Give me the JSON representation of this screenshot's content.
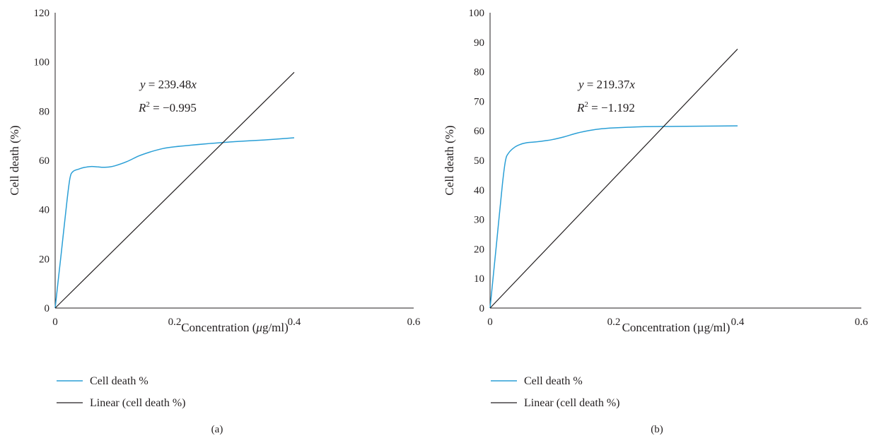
{
  "chart_data": [
    {
      "type": "line",
      "panel_label": "(a)",
      "xlabel_prefix": "Concentration (",
      "xlabel_mu": "μ",
      "xlabel_suffix": "g/ml)",
      "ylabel": "Cell death (%)",
      "xlim": [
        0,
        0.6
      ],
      "ylim": [
        0,
        120
      ],
      "xticks": [
        0,
        0.2,
        0.4,
        0.6
      ],
      "xtick_labels": [
        "0",
        "0.2",
        "0.4",
        "0.6"
      ],
      "yticks": [
        0,
        20,
        40,
        60,
        80,
        100,
        120
      ],
      "ytick_labels": [
        "0",
        "20",
        "40",
        "60",
        "80",
        "100",
        "120"
      ],
      "grid": false,
      "legend_position": "bottom-left",
      "equation": {
        "y_var": "y",
        "y_rest": " = 239.48",
        "y_x": "x",
        "r_var": "R",
        "r_sup": "2",
        "r_rest": " = −0.995"
      },
      "series": [
        {
          "name": "Cell death %",
          "color": "#2a9fd6",
          "x": [
            0,
            0.01,
            0.02,
            0.025,
            0.03,
            0.04,
            0.05,
            0.06,
            0.07,
            0.08,
            0.09,
            0.1,
            0.12,
            0.14,
            0.16,
            0.18,
            0.2,
            0.25,
            0.3,
            0.35,
            0.4
          ],
          "y": [
            0,
            22,
            44,
            53,
            55.5,
            56.5,
            57.2,
            57.5,
            57.4,
            57.2,
            57.3,
            57.8,
            59.5,
            61.8,
            63.5,
            64.8,
            65.5,
            66.7,
            67.6,
            68.3,
            69.2
          ]
        },
        {
          "name": "Linear (cell death %)",
          "color": "#231f20",
          "x": [
            0,
            0.4
          ],
          "y": [
            0,
            95.8
          ]
        }
      ]
    },
    {
      "type": "line",
      "panel_label": "(b)",
      "xlabel_prefix": "Concentration (",
      "xlabel_mu": "µ",
      "xlabel_suffix": "g/ml)",
      "ylabel": "Cell death (%)",
      "xlim": [
        0,
        0.6
      ],
      "ylim": [
        0,
        100
      ],
      "xticks": [
        0,
        0.2,
        0.4,
        0.6
      ],
      "xtick_labels": [
        "0",
        "0.2",
        "0.4",
        "0.6"
      ],
      "yticks": [
        0,
        10,
        20,
        30,
        40,
        50,
        60,
        70,
        80,
        90,
        100
      ],
      "ytick_labels": [
        "0",
        "10",
        "20",
        "30",
        "40",
        "50",
        "60",
        "70",
        "80",
        "90",
        "100"
      ],
      "grid": false,
      "legend_position": "bottom-left",
      "equation": {
        "y_var": "y",
        "y_rest": " = 219.37",
        "y_x": "x",
        "r_var": "R",
        "r_sup": "2",
        "r_rest": " = −1.192"
      },
      "series": [
        {
          "name": "Cell death %",
          "color": "#2a9fd6",
          "x": [
            0,
            0.01,
            0.02,
            0.025,
            0.03,
            0.04,
            0.05,
            0.06,
            0.07,
            0.08,
            0.09,
            0.1,
            0.12,
            0.14,
            0.16,
            0.18,
            0.2,
            0.25,
            0.3,
            0.35,
            0.4
          ],
          "y": [
            0,
            21,
            42,
            50,
            52.5,
            54.5,
            55.5,
            56,
            56.2,
            56.4,
            56.7,
            57,
            58,
            59.2,
            60.1,
            60.7,
            61,
            61.4,
            61.5,
            61.6,
            61.7
          ]
        },
        {
          "name": "Linear (cell death %)",
          "color": "#231f20",
          "x": [
            0,
            0.4
          ],
          "y": [
            0,
            87.7
          ]
        }
      ]
    }
  ]
}
